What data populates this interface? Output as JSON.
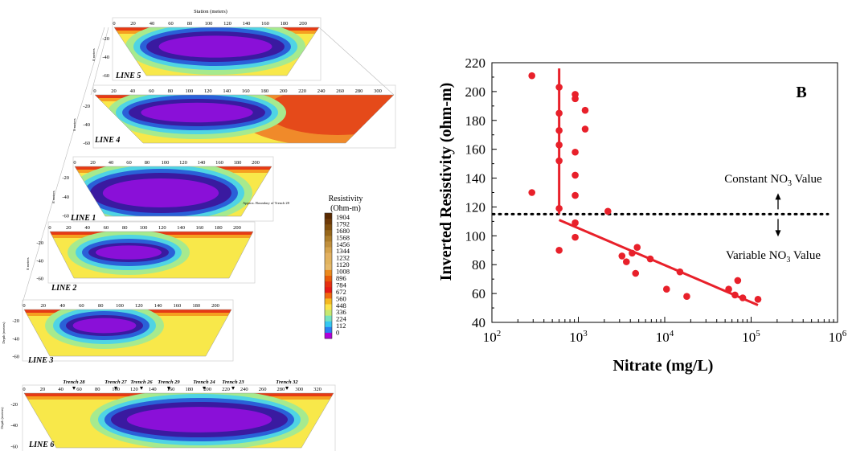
{
  "colors": {
    "data": "#e8202a",
    "axis": "#000000",
    "colorbar": [
      "#5a2a00",
      "#6e3a08",
      "#82500e",
      "#96661a",
      "#ad7d2a",
      "#c08f3c",
      "#d4a24c",
      "#e2b060",
      "#e1b35e",
      "#e6b96a",
      "#eb8a1e",
      "#e85a0a",
      "#e63010",
      "#e61a16",
      "#f06a10",
      "#f5b820",
      "#fbe44a",
      "#c7e870",
      "#76e2c0",
      "#35c8f2",
      "#2a7ff0",
      "#b000d8"
    ]
  },
  "profiles": [
    {
      "label": "LINE 5",
      "ticks": [
        "0",
        "20",
        "40",
        "60",
        "80",
        "100",
        "120",
        "140",
        "160",
        "180",
        "200"
      ],
      "depth_ticks": [
        "-20",
        "-40",
        "-60"
      ],
      "top_label": "Station (meters)",
      "side_label": "8 meters",
      "note": ""
    },
    {
      "label": "LINE 4",
      "ticks": [
        "0",
        "20",
        "40",
        "60",
        "80",
        "100",
        "120",
        "140",
        "160",
        "180",
        "200",
        "220",
        "240",
        "260",
        "280",
        "300"
      ],
      "depth_ticks": [
        "-20",
        "-40",
        "-60"
      ],
      "top_label": "",
      "side_label": "8 meters",
      "note": ""
    },
    {
      "label": "LINE 1",
      "ticks": [
        "0",
        "20",
        "40",
        "60",
        "80",
        "100",
        "120",
        "140",
        "160",
        "180",
        "200"
      ],
      "depth_ticks": [
        "-20",
        "-40",
        "-60"
      ],
      "top_label": "",
      "side_label": "8 meters",
      "note": "Approx. Boundary of Trench 28"
    },
    {
      "label": "LINE 2",
      "ticks": [
        "0",
        "20",
        "40",
        "60",
        "80",
        "100",
        "120",
        "140",
        "160",
        "180",
        "200"
      ],
      "depth_ticks": [
        "-20",
        "-40",
        "-60"
      ],
      "top_label": "",
      "side_label": "8 meters",
      "note": ""
    },
    {
      "label": "LINE 3",
      "ticks": [
        "0",
        "20",
        "40",
        "60",
        "80",
        "100",
        "120",
        "140",
        "160",
        "180",
        "200"
      ],
      "depth_ticks": [
        "-20",
        "-40",
        "-60"
      ],
      "top_label": "",
      "side_label": "Depth (meters)",
      "note": ""
    },
    {
      "label": "LINE 6",
      "ticks": [
        "0",
        "20",
        "40",
        "60",
        "80",
        "100",
        "120",
        "140",
        "160",
        "180",
        "200",
        "220",
        "240",
        "260",
        "280",
        "300",
        "320"
      ],
      "depth_ticks": [
        "-20",
        "-40",
        "-60"
      ],
      "top_label": "",
      "side_label": "Depth (meters)",
      "note": ""
    }
  ],
  "trenches": [
    "Trench 28",
    "Trench 27",
    "Trench 26",
    "Trench 29",
    "Trench 24",
    "Trench 23",
    "Trench 32"
  ],
  "colorbar": {
    "title_line1": "Resistivity",
    "title_line2": "(Ohm-m)",
    "labels": [
      "1904",
      "1792",
      "1680",
      "1568",
      "1456",
      "1344",
      "1232",
      "1120",
      "1008",
      "896",
      "784",
      "672",
      "560",
      "448",
      "336",
      "224",
      "112",
      "0"
    ]
  },
  "chart_data": {
    "type": "scatter",
    "panel_label": "B",
    "xlabel": "Nitrate (mg/L)",
    "ylabel": "Inverted Resistivity (ohm-m)",
    "x_scale": "log",
    "xlim": [
      100,
      1000000
    ],
    "ylim": [
      40,
      220
    ],
    "x_tick_labels": [
      {
        "base": "10",
        "exp": "2"
      },
      {
        "base": "10",
        "exp": "3"
      },
      {
        "base": "10",
        "exp": "4"
      },
      {
        "base": "10",
        "exp": "5"
      },
      {
        "base": "10",
        "exp": "6"
      }
    ],
    "y_ticks": [
      40,
      60,
      80,
      100,
      120,
      140,
      160,
      180,
      200,
      220
    ],
    "points": [
      [
        290,
        211
      ],
      [
        600,
        203
      ],
      [
        920,
        198
      ],
      [
        920,
        195
      ],
      [
        1200,
        187
      ],
      [
        600,
        185
      ],
      [
        600,
        173
      ],
      [
        1200,
        174
      ],
      [
        600,
        163
      ],
      [
        920,
        158
      ],
      [
        600,
        152
      ],
      [
        920,
        142
      ],
      [
        290,
        130
      ],
      [
        920,
        128
      ],
      [
        600,
        119
      ],
      [
        2200,
        117
      ],
      [
        920,
        109
      ],
      [
        920,
        99
      ],
      [
        600,
        90
      ],
      [
        4800,
        92
      ],
      [
        3200,
        86
      ],
      [
        4200,
        88
      ],
      [
        3600,
        82
      ],
      [
        6800,
        84
      ],
      [
        4600,
        74
      ],
      [
        15000,
        75
      ],
      [
        10500,
        63
      ],
      [
        18000,
        58
      ],
      [
        55000,
        63
      ],
      [
        70000,
        69
      ],
      [
        65000,
        59
      ],
      [
        80000,
        57
      ],
      [
        120000,
        56
      ]
    ],
    "threshold_y": 115,
    "constant_fit": {
      "x": 600,
      "y_range": [
        115,
        216
      ]
    },
    "variable_fit": {
      "x": [
        600,
        120000
      ],
      "y": [
        111,
        52
      ]
    },
    "annotations": {
      "upper_text": "Constant NO",
      "upper_suffix": " Value",
      "lower_text": "Variable NO",
      "lower_suffix": " Value",
      "subscript": "3"
    }
  }
}
